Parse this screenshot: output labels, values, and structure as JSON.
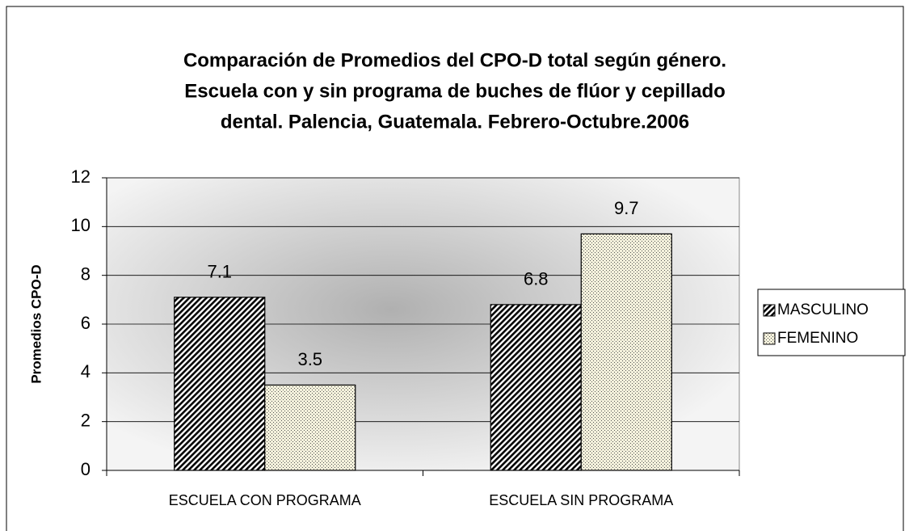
{
  "chart_data": {
    "type": "bar",
    "title": [
      "Comparación de Promedios del CPO-D total según género.",
      "Escuela con y sin programa de buches de flúor y cepillado",
      "dental. Palencia, Guatemala. Febrero-Octubre.2006"
    ],
    "y_label": "Promedios CPO-D",
    "categories": [
      "ESCUELA CON PROGRAMA",
      "ESCUELA SIN PROGRAMA"
    ],
    "series": [
      {
        "name": "MASCULINO",
        "pattern": "hatch",
        "values": [
          7.1,
          6.8
        ]
      },
      {
        "name": "FEMENINO",
        "pattern": "dots",
        "values": [
          3.5,
          9.7
        ]
      }
    ],
    "ylim": [
      0,
      12
    ],
    "yticks": [
      0,
      2,
      4,
      6,
      8,
      10,
      12
    ],
    "grid": true,
    "legend": "right"
  }
}
